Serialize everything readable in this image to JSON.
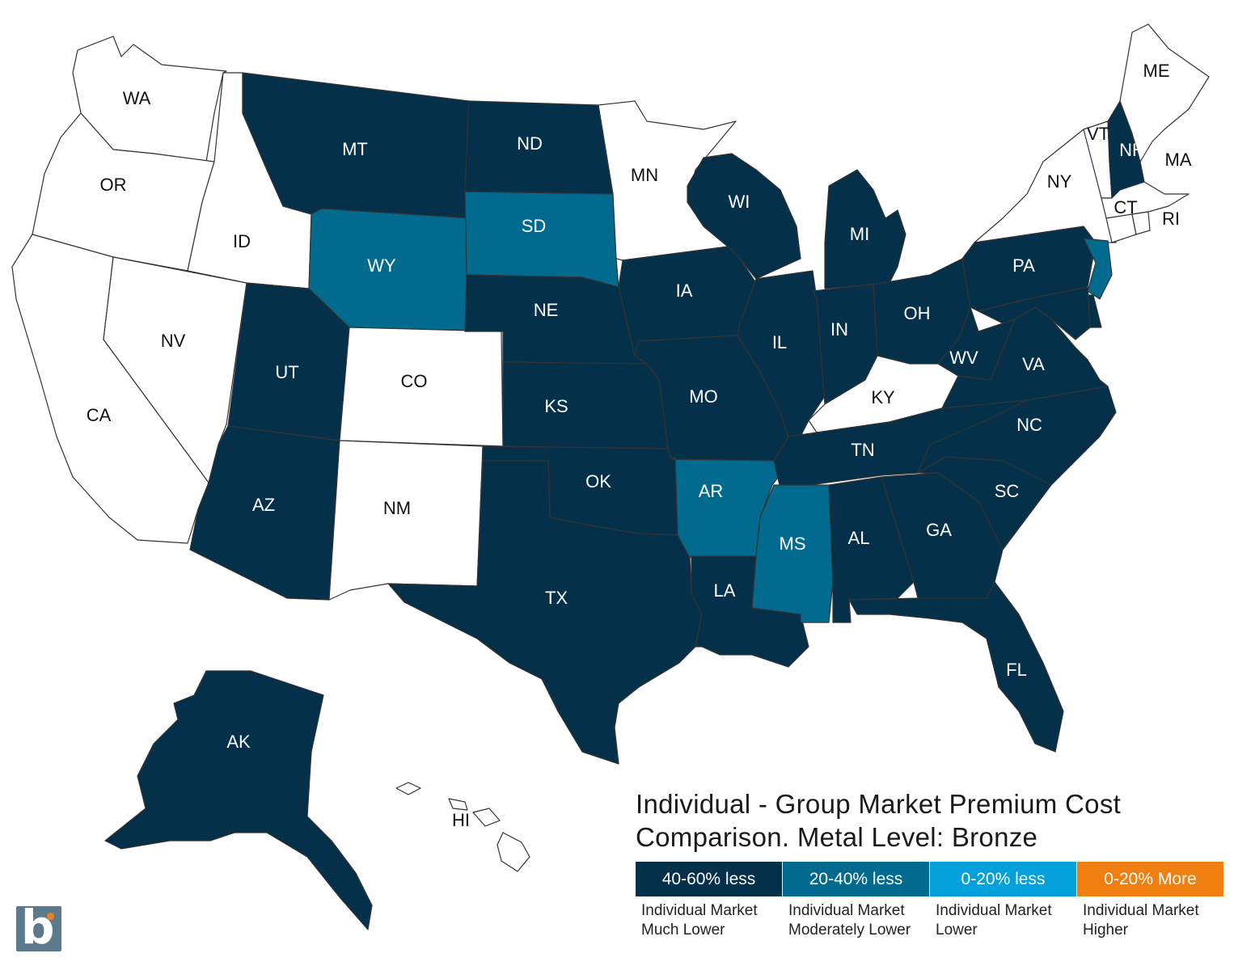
{
  "title": {
    "line1": "Individual - Group Market Premium Cost",
    "line2": "Comparison. Metal Level: Bronze"
  },
  "legend": [
    {
      "label": "40-60% less",
      "line1": "Individual Market",
      "line2": "Much Lower",
      "color": "#05304a"
    },
    {
      "label": "20-40% less",
      "line1": "Individual Market",
      "line2": "Moderately Lower",
      "color": "#016a8f"
    },
    {
      "label": "0-20% less",
      "line1": "Individual Market",
      "line2": "Lower",
      "color": "#04a0db"
    },
    {
      "label": "0-20% More",
      "line1": "Individual Market",
      "line2": "Higher",
      "color": "#f07f12"
    }
  ],
  "categories": {
    "much_lower": "40-60% less",
    "moderately_lower": "20-40% less",
    "no_data": "none"
  },
  "states": {
    "WA": "no_data",
    "OR": "no_data",
    "CA": "no_data",
    "NV": "no_data",
    "ID": "no_data",
    "MT": "much_lower",
    "WY": "moderately_lower",
    "UT": "much_lower",
    "CO": "no_data",
    "AZ": "much_lower",
    "NM": "no_data",
    "ND": "much_lower",
    "SD": "moderately_lower",
    "NE": "much_lower",
    "KS": "much_lower",
    "OK": "much_lower",
    "TX": "much_lower",
    "MN": "no_data",
    "IA": "much_lower",
    "MO": "much_lower",
    "AR": "moderately_lower",
    "LA": "much_lower",
    "WI": "much_lower",
    "IL": "much_lower",
    "MI": "much_lower",
    "IN": "much_lower",
    "OH": "much_lower",
    "KY": "no_data",
    "TN": "much_lower",
    "MS": "moderately_lower",
    "AL": "much_lower",
    "GA": "much_lower",
    "FL": "much_lower",
    "SC": "much_lower",
    "NC": "much_lower",
    "VA": "much_lower",
    "WV": "much_lower",
    "PA": "much_lower",
    "NY": "no_data",
    "NJ": "moderately_lower",
    "DE": "much_lower",
    "MD": "much_lower",
    "CT": "no_data",
    "RI": "no_data",
    "MA": "no_data",
    "VT": "no_data",
    "NH": "much_lower",
    "ME": "no_data",
    "AK": "much_lower",
    "HI": "no_data"
  },
  "logo": {
    "icon": "benefitmall-b-logo"
  }
}
